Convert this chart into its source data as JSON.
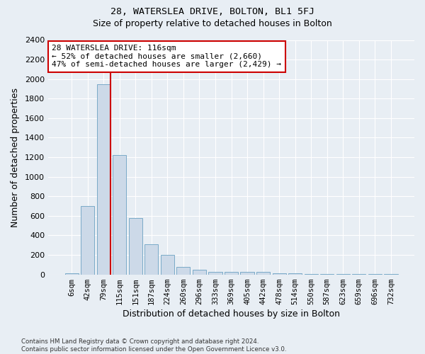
{
  "title_main": "28, WATERSLEA DRIVE, BOLTON, BL1 5FJ",
  "title_sub": "Size of property relative to detached houses in Bolton",
  "xlabel": "Distribution of detached houses by size in Bolton",
  "ylabel": "Number of detached properties",
  "categories": [
    "6sqm",
    "42sqm",
    "79sqm",
    "115sqm",
    "151sqm",
    "187sqm",
    "224sqm",
    "260sqm",
    "296sqm",
    "333sqm",
    "369sqm",
    "405sqm",
    "442sqm",
    "478sqm",
    "514sqm",
    "550sqm",
    "587sqm",
    "623sqm",
    "659sqm",
    "696sqm",
    "732sqm"
  ],
  "values": [
    10,
    700,
    1950,
    1220,
    580,
    310,
    200,
    80,
    45,
    30,
    25,
    25,
    25,
    15,
    10,
    5,
    5,
    3,
    2,
    2,
    2
  ],
  "bar_color": "#ccd9e8",
  "bar_edge_color": "#7aaac8",
  "vline_color": "#cc0000",
  "vline_index": 2,
  "annotation_text": "28 WATERSLEA DRIVE: 116sqm\n← 52% of detached houses are smaller (2,660)\n47% of semi-detached houses are larger (2,429) →",
  "annotation_box_color": "#ffffff",
  "annotation_box_edge": "#cc0000",
  "ylim": [
    0,
    2400
  ],
  "yticks": [
    0,
    200,
    400,
    600,
    800,
    1000,
    1200,
    1400,
    1600,
    1800,
    2000,
    2200,
    2400
  ],
  "footnote": "Contains HM Land Registry data © Crown copyright and database right 2024.\nContains public sector information licensed under the Open Government Licence v3.0.",
  "bg_color": "#e8eef4",
  "grid_color": "#ffffff"
}
